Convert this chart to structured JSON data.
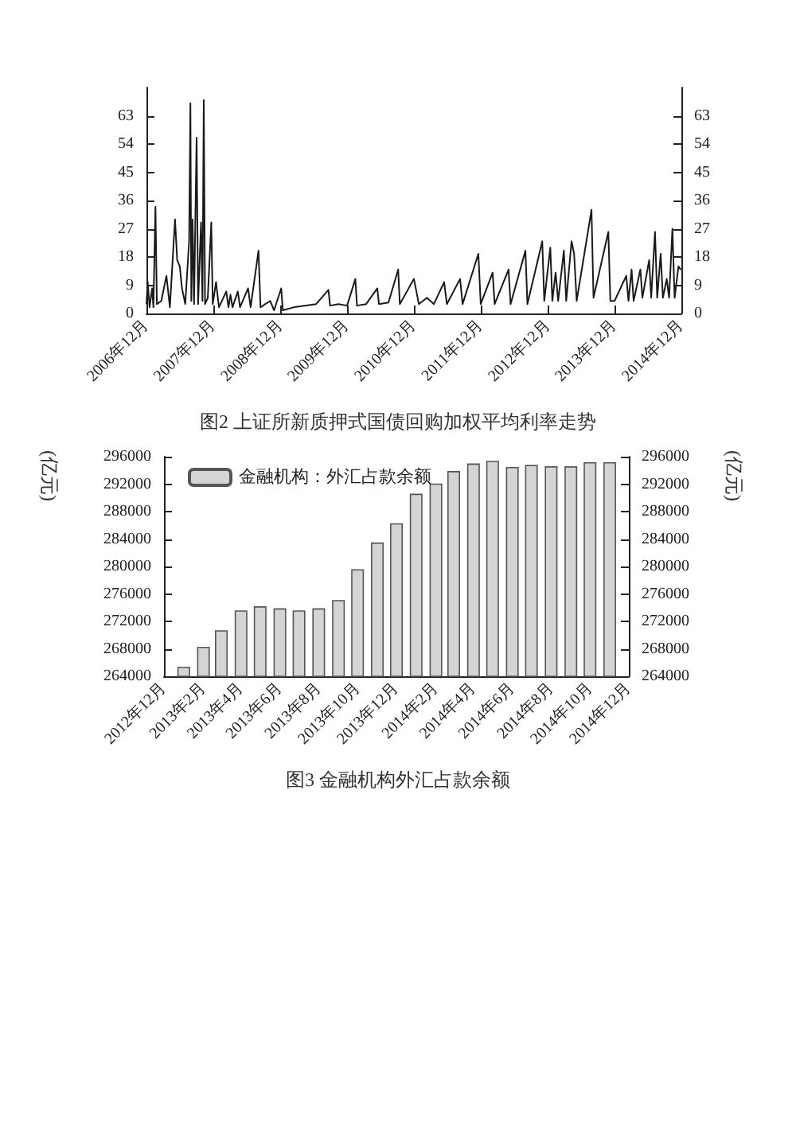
{
  "chart_data": [
    {
      "type": "line",
      "title": "图2 上证所新质押式国债回购加权平均利率走势",
      "x": [
        "2006-12-01",
        "2006-12-08",
        "2006-12-18",
        "2007-01-01",
        "2007-01-08",
        "2007-01-19",
        "2007-01-27",
        "2007-02-20",
        "2007-03-20",
        "2007-04-08",
        "2007-05-06",
        "2007-05-18",
        "2007-06-01",
        "2007-06-13",
        "2007-07-01",
        "2007-07-22",
        "2007-07-29",
        "2007-08-03",
        "2007-08-10",
        "2007-08-18",
        "2007-09-01",
        "2007-09-09",
        "2007-09-25",
        "2007-10-03",
        "2007-10-10",
        "2007-10-17",
        "2007-11-01",
        "2007-11-20",
        "2007-11-28",
        "2007-12-16",
        "2008-01-01",
        "2008-02-10",
        "2008-02-22",
        "2008-03-04",
        "2008-03-15",
        "2008-04-13",
        "2008-04-25",
        "2008-06-08",
        "2008-06-22",
        "2008-08-04",
        "2008-08-15",
        "2008-10-07",
        "2008-10-28",
        "2008-12-06",
        "2008-12-15",
        "2009-02-15",
        "2009-04-15",
        "2009-06-15",
        "2009-08-21",
        "2009-08-30",
        "2009-10-15",
        "2009-12-01",
        "2010-01-15",
        "2010-01-24",
        "2010-03-15",
        "2010-05-15",
        "2010-05-24",
        "2010-07-15",
        "2010-09-06",
        "2010-09-15",
        "2010-12-01",
        "2010-12-28",
        "2011-02-10",
        "2011-03-20",
        "2011-05-15",
        "2011-05-30",
        "2011-08-10",
        "2011-08-24",
        "2011-11-18",
        "2011-12-01",
        "2012-02-04",
        "2012-02-15",
        "2012-05-01",
        "2012-05-12",
        "2012-08-01",
        "2012-08-12",
        "2012-11-01",
        "2012-11-12",
        "2012-12-15",
        "2012-12-26",
        "2013-01-13",
        "2013-01-27",
        "2013-02-27",
        "2013-03-12",
        "2013-04-10",
        "2013-04-24",
        "2013-05-08",
        "2013-07-28",
        "2013-08-08",
        "2013-10-28",
        "2013-11-08",
        "2013-12-01",
        "2014-02-03",
        "2014-02-15",
        "2014-03-04",
        "2014-03-15",
        "2014-04-21",
        "2014-05-02",
        "2014-06-08",
        "2014-06-19",
        "2014-07-10",
        "2014-07-22",
        "2014-08-10",
        "2014-08-22",
        "2014-09-12",
        "2014-09-25",
        "2014-10-13",
        "2014-10-25",
        "2014-11-15",
        "2014-11-28"
      ],
      "series": [
        {
          "color": "#1a1a1a",
          "values": [
            3,
            10,
            2,
            8,
            2,
            34,
            3,
            4,
            12,
            2,
            30,
            17,
            15,
            8,
            3,
            23,
            67,
            4,
            30,
            3,
            56,
            3,
            29,
            4,
            68,
            3,
            5,
            29,
            3,
            10,
            2,
            7,
            2,
            6,
            2,
            7,
            2,
            8,
            2,
            20,
            2,
            4,
            1,
            8,
            1,
            2,
            2.5,
            3,
            7.5,
            2.5,
            3,
            2.5,
            11,
            2.5,
            3,
            8,
            3,
            3.5,
            14,
            3,
            11,
            3,
            5,
            3,
            10,
            3,
            11,
            3,
            19,
            3,
            13,
            3,
            14,
            3,
            20,
            3,
            23,
            4,
            21,
            4,
            13,
            4,
            20,
            4,
            23,
            19,
            4,
            33,
            5,
            26,
            4,
            4,
            12,
            4,
            14,
            4,
            14,
            5,
            17,
            5,
            26,
            5,
            19,
            5,
            11,
            5,
            27,
            5,
            15,
            14
          ]
        }
      ],
      "xlim": [
        "2006-12",
        "2014-12"
      ],
      "xticks": [
        {
          "value": "2006-12",
          "label": "2006年12月"
        },
        {
          "value": "2007-12",
          "label": "2007年12月"
        },
        {
          "value": "2008-12",
          "label": "2008年12月"
        },
        {
          "value": "2009-12",
          "label": "2009年12月"
        },
        {
          "value": "2010-12",
          "label": "2010年12月"
        },
        {
          "value": "2011-12",
          "label": "2011年12月"
        },
        {
          "value": "2012-12",
          "label": "2012年12月"
        },
        {
          "value": "2013-12",
          "label": "2013年12月"
        },
        {
          "value": "2014-12",
          "label": "2014年12月"
        }
      ],
      "ylim": [
        0,
        72
      ],
      "yticks": [
        0,
        9,
        18,
        27,
        36,
        45,
        54,
        63
      ],
      "y2lim": [
        0,
        72
      ],
      "y2ticks": [
        0,
        9,
        18,
        27,
        36,
        45,
        54,
        63
      ],
      "grid": false,
      "legend": false
    },
    {
      "type": "bar",
      "title": "图3 金融机构外汇占款余额",
      "ylabel": "(亿元)",
      "y2label": "(亿元)",
      "x": [
        "2013-01",
        "2013-02",
        "2013-03",
        "2013-04",
        "2013-05",
        "2013-06",
        "2013-07",
        "2013-08",
        "2013-09",
        "2013-10",
        "2013-11",
        "2013-12",
        "2014-01",
        "2014-02",
        "2014-03",
        "2014-04",
        "2014-05",
        "2014-06",
        "2014-07",
        "2014-08",
        "2014-09",
        "2014-10",
        "2014-11"
      ],
      "series": [
        {
          "name": "金融机构：外汇占款余额",
          "color": "#d4d4d4",
          "values": [
            265400,
            268300,
            270700,
            273600,
            274200,
            273900,
            273600,
            273900,
            275100,
            279600,
            283500,
            286300,
            290600,
            292100,
            293900,
            295000,
            295400,
            294500,
            294800,
            294600,
            294600,
            295200,
            295200
          ]
        }
      ],
      "xlim": [
        "2012-12",
        "2014-12"
      ],
      "xticks": [
        {
          "value": "2012-12",
          "label": "2012年12月"
        },
        {
          "value": "2013-02",
          "label": "2013年2月"
        },
        {
          "value": "2013-04",
          "label": "2013年4月"
        },
        {
          "value": "2013-06",
          "label": "2013年6月"
        },
        {
          "value": "2013-08",
          "label": "2013年8月"
        },
        {
          "value": "2013-10",
          "label": "2013年10月"
        },
        {
          "value": "2013-12",
          "label": "2013年12月"
        },
        {
          "value": "2014-02",
          "label": "2014年2月"
        },
        {
          "value": "2014-04",
          "label": "2014年4月"
        },
        {
          "value": "2014-06",
          "label": "2014年6月"
        },
        {
          "value": "2014-08",
          "label": "2014年8月"
        },
        {
          "value": "2014-10",
          "label": "2014年10月"
        },
        {
          "value": "2014-12",
          "label": "2014年12月"
        }
      ],
      "ylim": [
        264000,
        296000
      ],
      "yticks": [
        264000,
        268000,
        272000,
        276000,
        280000,
        284000,
        288000,
        292000,
        296000
      ],
      "y2lim": [
        264000,
        296000
      ],
      "y2ticks": [
        264000,
        268000,
        272000,
        276000,
        280000,
        284000,
        288000,
        292000,
        296000
      ],
      "grid": false,
      "legend": "top left"
    }
  ]
}
